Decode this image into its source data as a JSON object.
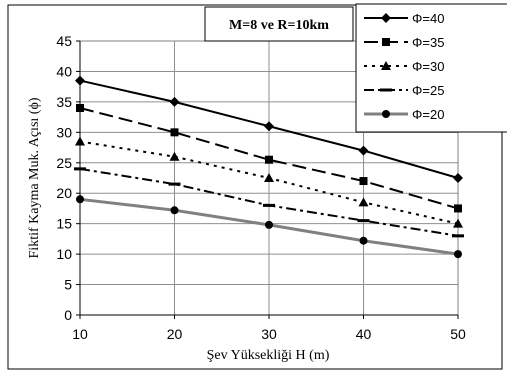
{
  "chart_data": {
    "type": "line",
    "title": "M=8 ve R=10km",
    "xlabel": "Şev Yüksekliği H (m)",
    "ylabel": "Fiktif Kayma Muk. Açısı (ϕ)",
    "x": [
      10,
      20,
      30,
      40,
      50
    ],
    "xlim": [
      10,
      50
    ],
    "ylim": [
      0,
      45
    ],
    "x_ticks": [
      "10",
      "20",
      "30",
      "40",
      "50"
    ],
    "y_ticks": [
      "0",
      "5",
      "10",
      "15",
      "20",
      "25",
      "30",
      "35",
      "40",
      "45"
    ],
    "grid": true,
    "legend_position": "top-right",
    "series": [
      {
        "name": "Φ=40",
        "values": [
          38.5,
          35,
          31,
          27,
          22.5
        ],
        "marker": "diamond",
        "dash": "solid",
        "color": "#000000"
      },
      {
        "name": "Φ=35",
        "values": [
          34,
          30,
          25.5,
          22,
          17.5
        ],
        "marker": "square",
        "dash": "long-dash",
        "color": "#000000"
      },
      {
        "name": "Φ=30",
        "values": [
          28.5,
          26,
          22.5,
          18.5,
          15
        ],
        "marker": "triangle",
        "dash": "dot",
        "color": "#000000"
      },
      {
        "name": "Φ=25",
        "values": [
          24,
          21.5,
          18,
          15.5,
          13
        ],
        "marker": "dash",
        "dash": "dash-dot",
        "color": "#000000"
      },
      {
        "name": "Φ=20",
        "values": [
          19,
          17.2,
          14.8,
          12.2,
          10
        ],
        "marker": "circle",
        "dash": "solid",
        "color": "#808080"
      }
    ]
  }
}
